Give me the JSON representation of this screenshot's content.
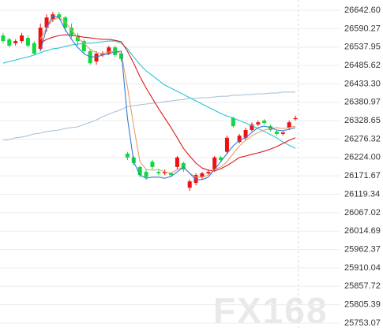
{
  "chart_data": {
    "type": "candlestick",
    "watermark": "FX168",
    "ylim": [
      25753.07,
      26642.6
    ],
    "yticks": [
      {
        "value": 26642.6,
        "label": "26642.60"
      },
      26590.27,
      26537.95,
      26485.62,
      {
        "value": 26433.3,
        "label": "26433.30"
      },
      26380.97,
      26328.65,
      26276.32,
      {
        "value": 26224.0,
        "label": "26224.00"
      },
      26171.67,
      26119.34,
      26067.02,
      26014.69,
      25962.37,
      25910.04,
      25857.72,
      25805.39,
      25753.07
    ],
    "grid": true,
    "up_color": "#f01010",
    "down_color": "#10d840",
    "open": [
      26571,
      26560,
      26549,
      26555,
      26564,
      26549,
      26533,
      26593,
      26616,
      26631,
      26622,
      26593,
      26571,
      26555,
      26526,
      26497,
      26515,
      26519,
      26537,
      26519,
      26235,
      26224,
      26197,
      26183,
      26212,
      26183,
      26179,
      26179,
      26197,
      26208,
      26138,
      26152,
      26168,
      26179,
      26190,
      26224,
      26240,
      26336,
      26268,
      26280,
      26302,
      26318,
      26329,
      26313,
      26298,
      26291,
      26309,
      26333
    ],
    "high": [
      26578,
      26564,
      26560,
      26578,
      26571,
      26555,
      26605,
      26631,
      26638,
      26638,
      26627,
      26605,
      26578,
      26560,
      26533,
      26526,
      26526,
      26542,
      26542,
      26526,
      26240,
      26228,
      26201,
      26190,
      26217,
      26190,
      26190,
      26183,
      26228,
      26212,
      26161,
      26179,
      26183,
      26190,
      26228,
      26228,
      26286,
      26340,
      26291,
      26309,
      26324,
      26329,
      26333,
      26318,
      26302,
      26298,
      26329,
      26343
    ],
    "low": [
      26549,
      26537,
      26542,
      26549,
      26537,
      26515,
      26526,
      26582,
      26609,
      26616,
      26582,
      26564,
      26542,
      26519,
      26488,
      26488,
      26510,
      26515,
      26510,
      26497,
      26217,
      26201,
      26168,
      26161,
      26190,
      26174,
      26174,
      26168,
      26190,
      26183,
      26129,
      26145,
      26161,
      26174,
      26183,
      26212,
      26235,
      26309,
      26264,
      26273,
      26298,
      26313,
      26318,
      26298,
      26286,
      26286,
      26302,
      26329
    ],
    "close": [
      26555,
      26542,
      26555,
      26571,
      26542,
      26519,
      26593,
      26622,
      26631,
      26622,
      26593,
      26571,
      26555,
      26526,
      26492,
      26519,
      26519,
      26537,
      26515,
      26504,
      26224,
      26208,
      26174,
      26168,
      26197,
      26179,
      26183,
      26174,
      26224,
      26190,
      26156,
      26174,
      26179,
      26183,
      26224,
      26217,
      26280,
      26313,
      26286,
      26302,
      26318,
      26324,
      26322,
      26302,
      26291,
      26295,
      26324,
      26336
    ],
    "lines": [
      {
        "color": "#aac4dc",
        "values": [
          26273,
          26275,
          26280,
          26282,
          26286,
          26291,
          26293,
          26298,
          26300,
          26302,
          26307,
          26309,
          26311,
          26318,
          26324,
          26331,
          26340,
          26347,
          26354,
          26360,
          26369,
          26371,
          26374,
          26376,
          26378,
          26380,
          26383,
          26385,
          26387,
          26389,
          26392,
          26392,
          26394,
          26394,
          26396,
          26398,
          26398,
          26401,
          26401,
          26403,
          26403,
          26405,
          26405,
          26407,
          26407,
          26410,
          26410,
          26410
        ]
      },
      {
        "color": "#2ec4d0",
        "values": [
          26492,
          26497,
          26501,
          26506,
          26510,
          26515,
          26522,
          26528,
          26533,
          26535,
          26540,
          26544,
          26546,
          26549,
          26549,
          26551,
          26553,
          26555,
          26555,
          26549,
          26533,
          26510,
          26488,
          26470,
          26457,
          26443,
          26430,
          26421,
          26412,
          26403,
          26394,
          26385,
          26376,
          26367,
          26358,
          26349,
          26342,
          26336,
          26329,
          26322,
          26315,
          26306,
          26298,
          26289,
          26280,
          26268,
          26259,
          26250
        ]
      },
      {
        "color": "#e01818",
        "values": [
          null,
          null,
          null,
          null,
          null,
          null,
          26549,
          26560,
          26566,
          26571,
          26573,
          26571,
          26569,
          26566,
          26564,
          26562,
          26560,
          26560,
          26557,
          26553,
          26526,
          26492,
          26454,
          26421,
          26392,
          26363,
          26336,
          26309,
          26280,
          26250,
          26228,
          26208,
          26194,
          26188,
          26186,
          26192,
          26201,
          26212,
          26224,
          26228,
          26233,
          26237,
          26242,
          26248,
          26255,
          26264,
          26273,
          26280
        ]
      },
      {
        "color": "#e0a070",
        "values": [
          null,
          null,
          null,
          null,
          null,
          null,
          26560,
          26593,
          26616,
          26622,
          26609,
          26587,
          26564,
          26549,
          26531,
          26522,
          26519,
          26524,
          26526,
          26519,
          26425,
          26313,
          26212,
          26190,
          26188,
          26190,
          26183,
          26179,
          26190,
          26197,
          26179,
          26168,
          26168,
          26174,
          26190,
          26197,
          26212,
          26235,
          26257,
          26273,
          26286,
          26295,
          26302,
          26306,
          26309,
          26306,
          26309,
          26313
        ]
      },
      {
        "color": "#3a78d8",
        "values": [
          null,
          null,
          null,
          null,
          null,
          null,
          26526,
          26593,
          26627,
          26622,
          26587,
          26560,
          26537,
          26519,
          26510,
          26510,
          26515,
          26519,
          26524,
          26526,
          26336,
          26212,
          26174,
          26165,
          26168,
          26168,
          26165,
          26170,
          26183,
          26197,
          26179,
          26161,
          26161,
          26168,
          26190,
          26212,
          26235,
          26257,
          26273,
          26280,
          26295,
          26309,
          26313,
          26309,
          26302,
          26300,
          26304,
          26309
        ]
      }
    ]
  }
}
